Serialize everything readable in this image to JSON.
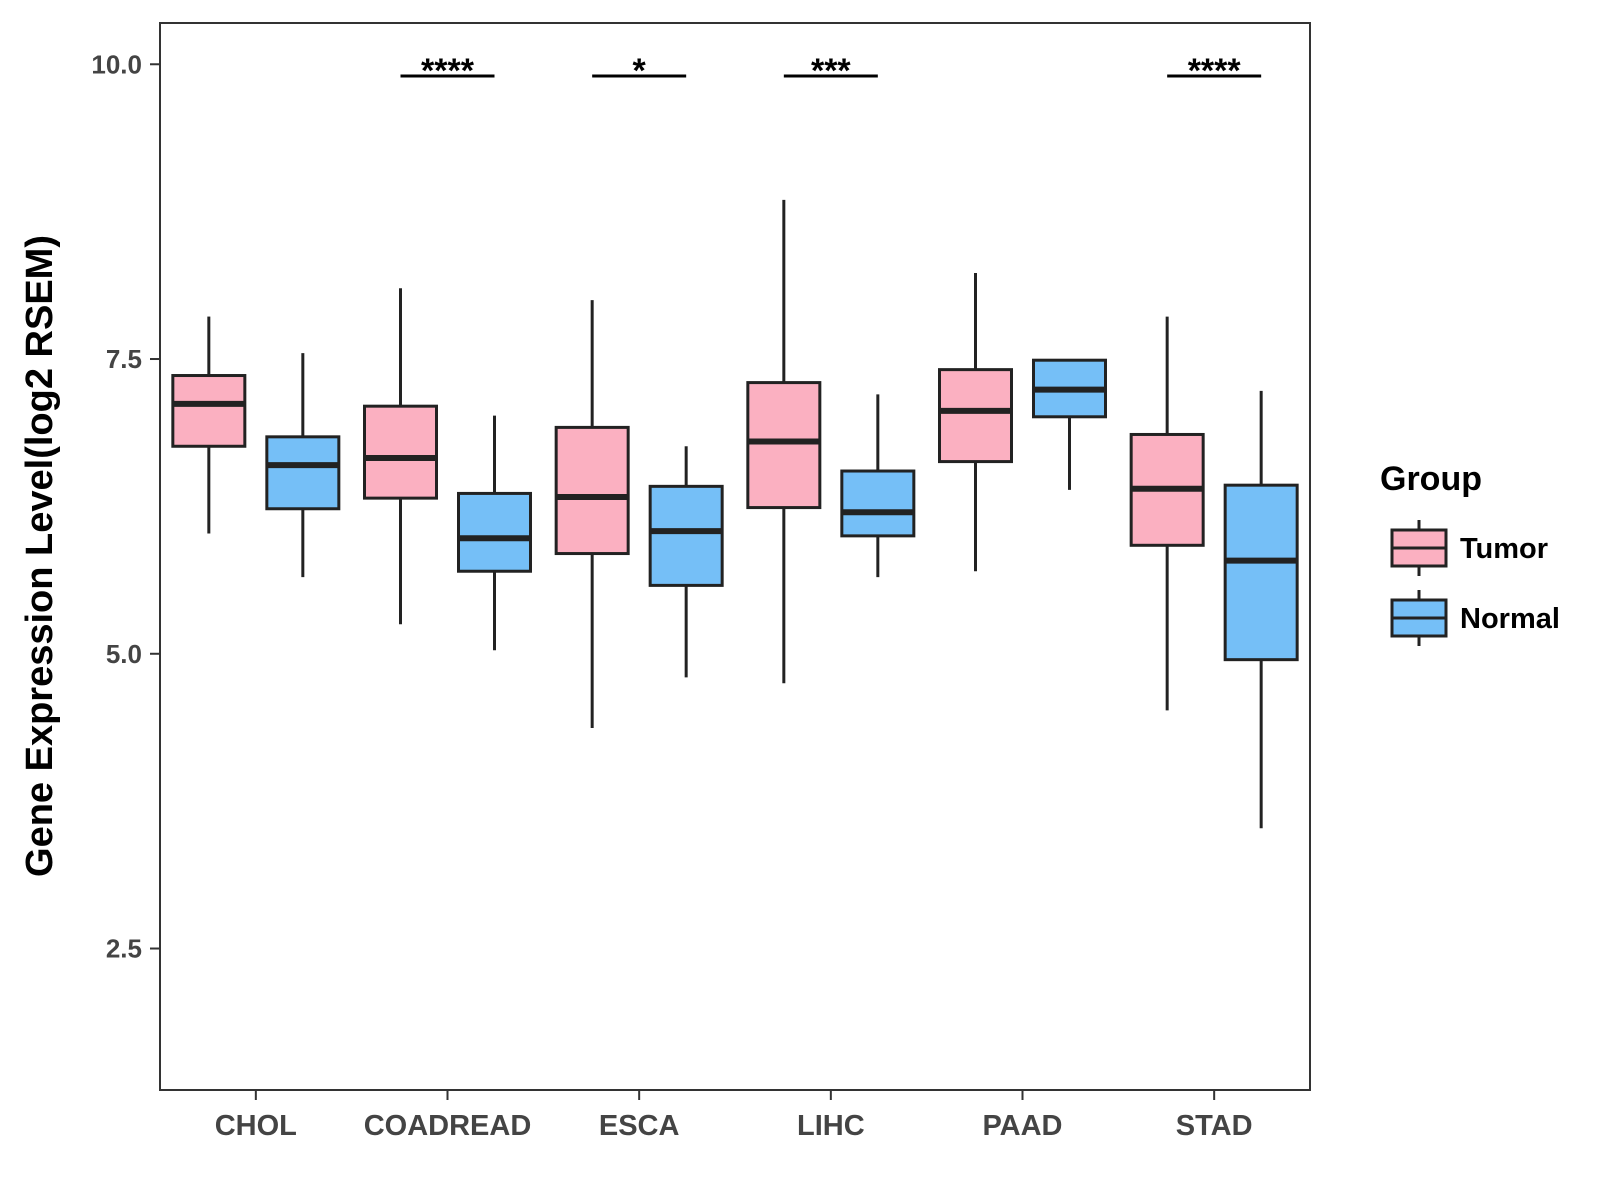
{
  "chart_data": {
    "type": "boxplot",
    "title": "",
    "xlabel": "",
    "ylabel": "Gene Expression Level(log2 RSEM)",
    "ylim": [
      1.3,
      10.35
    ],
    "yticks": [
      {
        "value": 2.5,
        "label": "2.5"
      },
      {
        "value": 5.0,
        "label": "5.0"
      },
      {
        "value": 7.5,
        "label": "7.5"
      },
      {
        "value": 10.0,
        "label": "10.0"
      }
    ],
    "grid": false,
    "categories": [
      "CHOL",
      "COADREAD",
      "ESCA",
      "LIHC",
      "PAAD",
      "STAD"
    ],
    "series": [
      {
        "name": "Tumor",
        "color": "#FBB0C1",
        "boxes": [
          {
            "min": 6.02,
            "q1": 6.76,
            "median": 7.12,
            "q3": 7.36,
            "max": 7.86
          },
          {
            "min": 5.25,
            "q1": 6.32,
            "median": 6.66,
            "q3": 7.1,
            "max": 8.1
          },
          {
            "min": 4.37,
            "q1": 5.85,
            "median": 6.33,
            "q3": 6.92,
            "max": 8.0
          },
          {
            "min": 4.75,
            "q1": 6.24,
            "median": 6.8,
            "q3": 7.3,
            "max": 8.85
          },
          {
            "min": 5.7,
            "q1": 6.63,
            "median": 7.06,
            "q3": 7.41,
            "max": 8.23
          },
          {
            "min": 4.52,
            "q1": 5.92,
            "median": 6.4,
            "q3": 6.86,
            "max": 7.86
          }
        ]
      },
      {
        "name": "Normal",
        "color": "#75BFF7",
        "boxes": [
          {
            "min": 5.65,
            "q1": 6.23,
            "median": 6.6,
            "q3": 6.84,
            "max": 7.55
          },
          {
            "min": 5.03,
            "q1": 5.7,
            "median": 5.98,
            "q3": 6.36,
            "max": 7.02
          },
          {
            "min": 4.8,
            "q1": 5.58,
            "median": 6.04,
            "q3": 6.42,
            "max": 6.76
          },
          {
            "min": 5.65,
            "q1": 6.0,
            "median": 6.2,
            "q3": 6.55,
            "max": 7.2
          },
          {
            "min": 6.39,
            "q1": 7.01,
            "median": 7.24,
            "q3": 7.49,
            "max": 7.49
          },
          {
            "min": 3.52,
            "q1": 4.95,
            "median": 5.79,
            "q3": 6.43,
            "max": 7.23
          }
        ]
      }
    ],
    "significance": [
      {
        "category": "COADREAD",
        "label": "****",
        "y": 9.9
      },
      {
        "category": "ESCA",
        "label": "*",
        "y": 9.9
      },
      {
        "category": "LIHC",
        "label": "***",
        "y": 9.9
      },
      {
        "category": "STAD",
        "label": "****",
        "y": 9.9
      }
    ],
    "legend": {
      "title": "Group",
      "position": "right",
      "entries": [
        "Tumor",
        "Normal"
      ]
    }
  }
}
